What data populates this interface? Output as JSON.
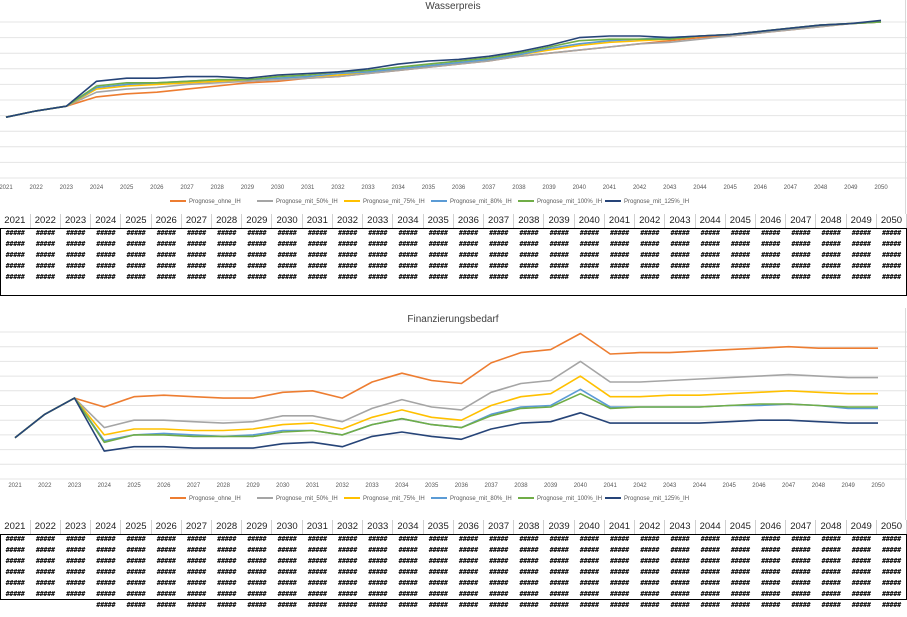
{
  "years": [
    "2021",
    "2022",
    "2023",
    "2024",
    "2025",
    "2026",
    "2027",
    "2028",
    "2029",
    "2030",
    "2031",
    "2032",
    "2033",
    "2034",
    "2035",
    "2036",
    "2037",
    "2038",
    "2039",
    "2040",
    "2041",
    "2042",
    "2043",
    "2044",
    "2045",
    "2046",
    "2047",
    "2048",
    "2049",
    "2050"
  ],
  "overflow_cell": "#####",
  "table1": {
    "rows": 5,
    "extra_row": false
  },
  "table2": {
    "rows": 6,
    "extra_row": true
  },
  "chart_data": [
    {
      "type": "line",
      "title": "Wasserpreis",
      "xlabel": "",
      "ylabel": "",
      "ylim": [
        0,
        100
      ],
      "grid": true,
      "legend_position": "bottom",
      "categories": [
        "2021",
        "2022",
        "2023",
        "2024",
        "2025",
        "2026",
        "2027",
        "2028",
        "2029",
        "2030",
        "2031",
        "2032",
        "2033",
        "2034",
        "2035",
        "2036",
        "2037",
        "2038",
        "2039",
        "2040",
        "2041",
        "2042",
        "2043",
        "2044",
        "2045",
        "2046",
        "2047",
        "2048",
        "2049",
        "2050"
      ],
      "series": [
        {
          "name": "Prognose_ohne_IH",
          "color": "#ED7D31",
          "values": [
            39,
            43,
            46,
            52,
            54,
            55,
            57,
            59,
            61,
            62,
            64,
            65,
            67,
            69,
            71,
            73,
            75,
            78,
            80,
            82,
            84,
            86,
            88,
            90,
            91,
            93,
            95,
            97,
            99,
            100
          ]
        },
        {
          "name": "Prognose_mit_50%_IH",
          "color": "#A5A5A5",
          "values": [
            39,
            43,
            46,
            55,
            57,
            58,
            60,
            61,
            62,
            63,
            64,
            65,
            67,
            69,
            71,
            73,
            75,
            78,
            80,
            82,
            84,
            86,
            87,
            89,
            91,
            93,
            95,
            97,
            99,
            100
          ]
        },
        {
          "name": "Prognose_mit_75%_IH",
          "color": "#FFC000",
          "values": [
            39,
            43,
            46,
            57,
            59,
            60,
            61,
            62,
            63,
            64,
            65,
            66,
            68,
            70,
            72,
            74,
            76,
            79,
            82,
            85,
            87,
            88,
            89,
            91,
            92,
            94,
            96,
            98,
            99,
            100
          ]
        },
        {
          "name": "Prognose_mit_80%_IH",
          "color": "#5B9BD5",
          "values": [
            39,
            43,
            46,
            58,
            60,
            61,
            62,
            63,
            63,
            64,
            65,
            67,
            68,
            70,
            72,
            74,
            76,
            79,
            83,
            86,
            88,
            89,
            90,
            91,
            92,
            94,
            96,
            98,
            99,
            100
          ]
        },
        {
          "name": "Prognose_mit_100%_IH",
          "color": "#70AD47",
          "values": [
            39,
            43,
            46,
            59,
            61,
            61,
            62,
            63,
            63,
            65,
            66,
            68,
            69,
            71,
            73,
            75,
            77,
            80,
            84,
            88,
            89,
            89,
            89,
            91,
            92,
            94,
            96,
            98,
            99,
            100
          ]
        },
        {
          "name": "Prognose_mit_125%_IH",
          "color": "#264478",
          "values": [
            39,
            43,
            46,
            62,
            64,
            64,
            65,
            65,
            64,
            66,
            67,
            68,
            70,
            73,
            75,
            76,
            78,
            81,
            85,
            90,
            91,
            91,
            90,
            91,
            92,
            94,
            96,
            98,
            99,
            101
          ]
        }
      ]
    },
    {
      "type": "line",
      "title": "Finanzierungsbedarf",
      "xlabel": "",
      "ylabel": "",
      "ylim": [
        0,
        100
      ],
      "grid": true,
      "legend_position": "bottom",
      "categories": [
        "2021",
        "2022",
        "2023",
        "2024",
        "2025",
        "2026",
        "2027",
        "2028",
        "2029",
        "2030",
        "2031",
        "2032",
        "2033",
        "2034",
        "2035",
        "2036",
        "2037",
        "2038",
        "2039",
        "2040",
        "2041",
        "2042",
        "2043",
        "2044",
        "2045",
        "2046",
        "2047",
        "2048",
        "2049",
        "2050"
      ],
      "series": [
        {
          "name": "Prognose_ohne_IH",
          "color": "#ED7D31",
          "values": [
            28,
            44,
            55,
            49,
            56,
            57,
            56,
            55,
            55,
            59,
            60,
            55,
            66,
            72,
            67,
            65,
            79,
            86,
            88,
            99,
            85,
            86,
            86,
            87,
            88,
            89,
            90,
            89,
            89,
            89
          ]
        },
        {
          "name": "Prognose_mit_50%_IH",
          "color": "#A5A5A5",
          "values": [
            28,
            44,
            55,
            35,
            40,
            40,
            39,
            38,
            39,
            43,
            43,
            39,
            48,
            54,
            49,
            47,
            59,
            65,
            67,
            80,
            66,
            66,
            67,
            68,
            69,
            70,
            71,
            70,
            69,
            69
          ]
        },
        {
          "name": "Prognose_mit_75%_IH",
          "color": "#FFC000",
          "values": [
            28,
            44,
            55,
            30,
            34,
            34,
            33,
            33,
            34,
            37,
            38,
            34,
            42,
            47,
            42,
            40,
            50,
            56,
            58,
            70,
            56,
            56,
            57,
            57,
            58,
            59,
            60,
            59,
            58,
            58
          ]
        },
        {
          "name": "Prognose_mit_80%_IH",
          "color": "#5B9BD5",
          "values": [
            28,
            44,
            55,
            26,
            30,
            31,
            30,
            29,
            30,
            33,
            33,
            30,
            37,
            41,
            37,
            35,
            44,
            49,
            50,
            61,
            49,
            49,
            49,
            49,
            50,
            50,
            51,
            50,
            48,
            48
          ]
        },
        {
          "name": "Prognose_mit_100%_IH",
          "color": "#70AD47",
          "values": [
            28,
            44,
            55,
            25,
            30,
            30,
            29,
            29,
            29,
            32,
            33,
            30,
            37,
            41,
            37,
            35,
            43,
            48,
            49,
            58,
            48,
            49,
            49,
            49,
            50,
            51,
            51,
            50,
            49,
            49
          ]
        },
        {
          "name": "Prognose_mit_125%_IH",
          "color": "#264478",
          "values": [
            28,
            44,
            55,
            19,
            22,
            22,
            21,
            21,
            21,
            24,
            25,
            22,
            29,
            32,
            29,
            27,
            34,
            38,
            39,
            45,
            38,
            38,
            38,
            38,
            39,
            40,
            40,
            39,
            38,
            38
          ]
        }
      ]
    }
  ]
}
